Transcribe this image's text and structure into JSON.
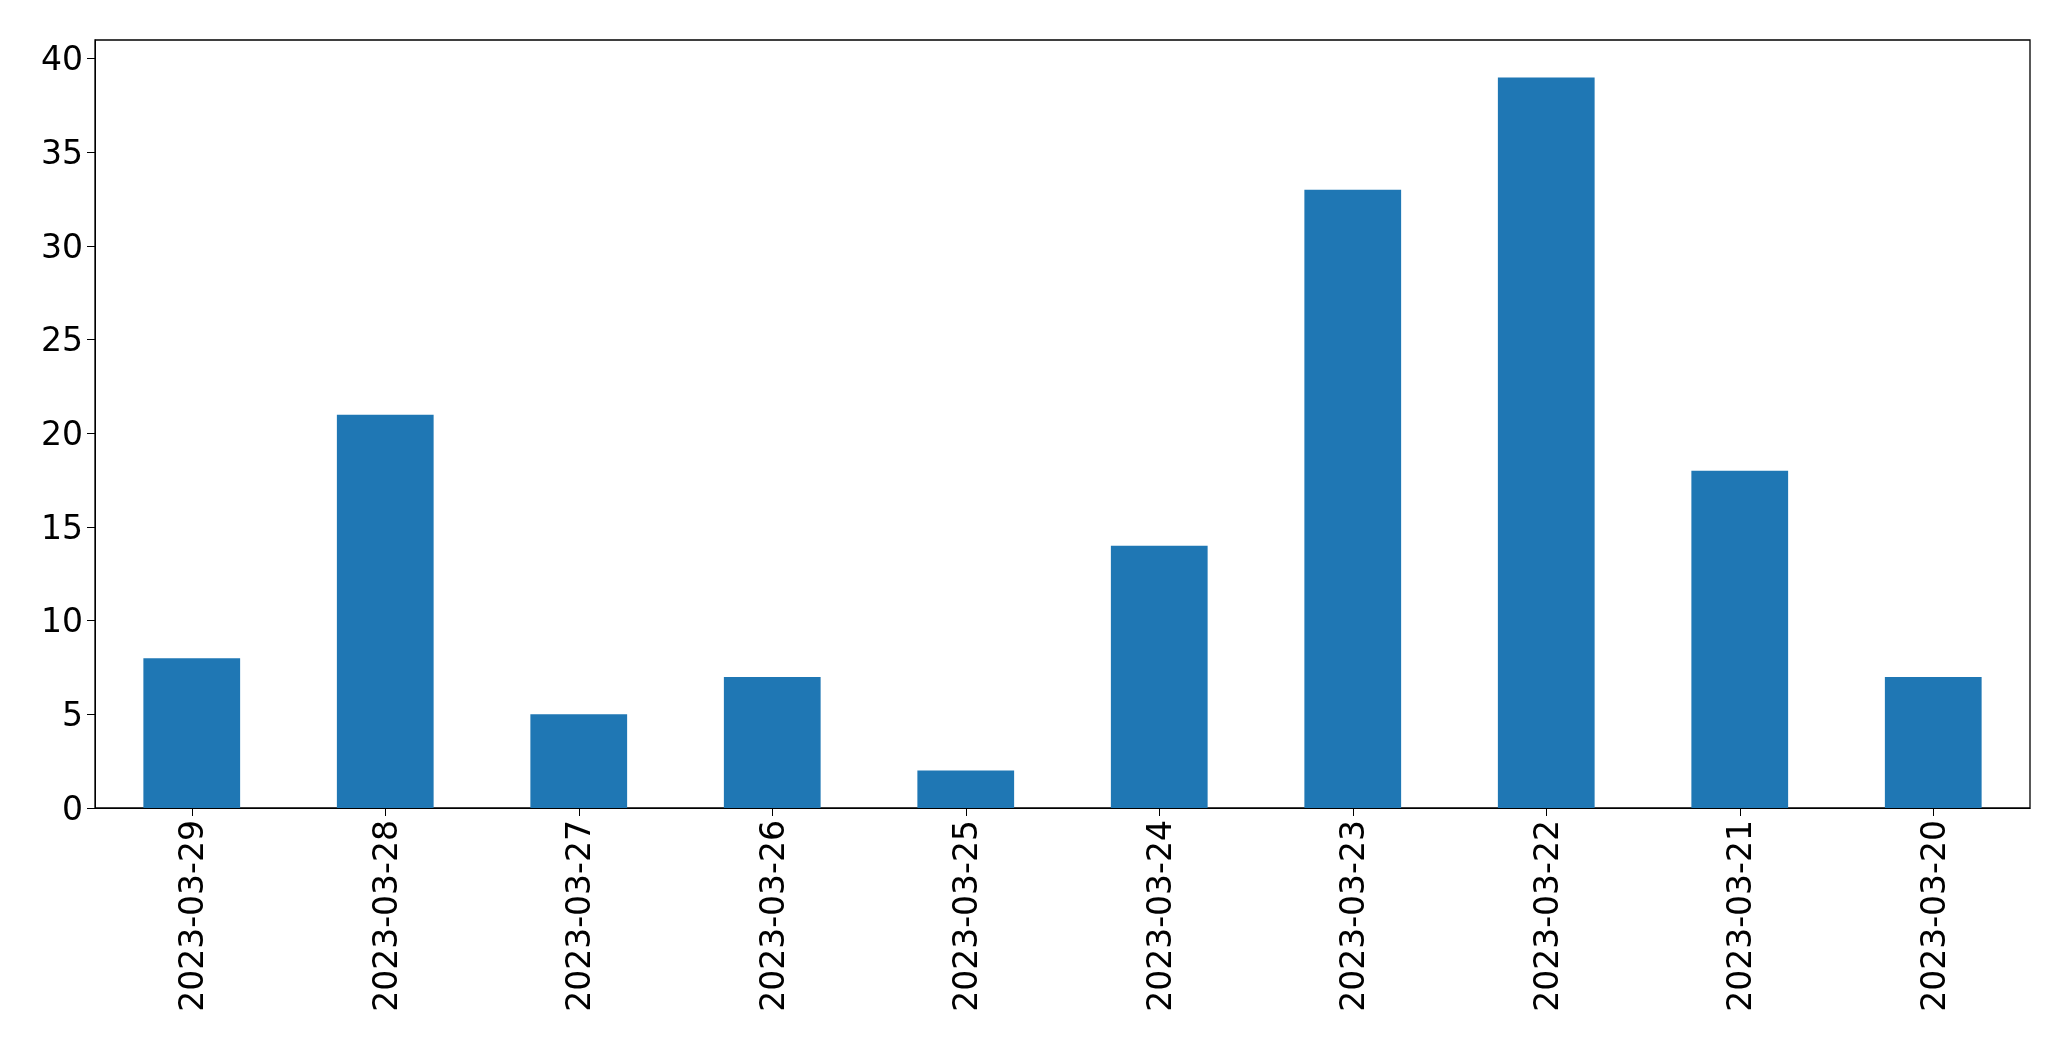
{
  "chart_data": {
    "type": "bar",
    "categories": [
      "2023-03-29",
      "2023-03-28",
      "2023-03-27",
      "2023-03-26",
      "2023-03-25",
      "2023-03-24",
      "2023-03-23",
      "2023-03-22",
      "2023-03-21",
      "2023-03-20"
    ],
    "values": [
      8,
      21,
      5,
      7,
      2,
      14,
      33,
      39,
      18,
      7
    ],
    "color": "#1f77b4",
    "ylim": [
      0,
      41
    ],
    "yticks": [
      0,
      5,
      10,
      15,
      20,
      25,
      30,
      35,
      40
    ],
    "grid": false
  }
}
